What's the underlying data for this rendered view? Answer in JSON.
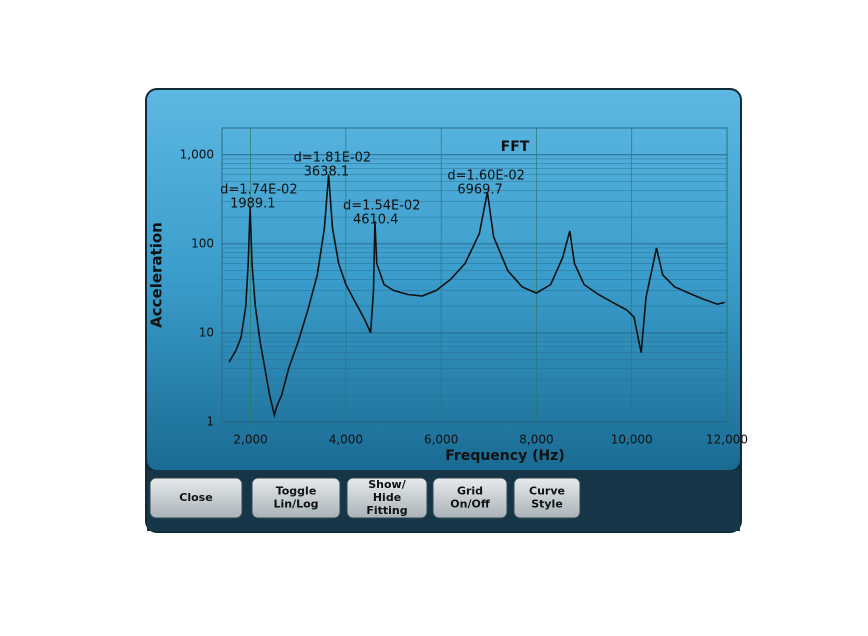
{
  "chart_data": {
    "type": "line",
    "title": "FFT",
    "x_label": "Frequency (Hz)",
    "y_label": "Acceleration",
    "log_y": true,
    "grid": true,
    "xlim": [
      1400,
      12000
    ],
    "xticks": [
      {
        "value": 2000,
        "label": "2,000"
      },
      {
        "value": 4000,
        "label": "4,000"
      },
      {
        "value": 6000,
        "label": "6,000"
      },
      {
        "value": 8000,
        "label": "8,000"
      },
      {
        "value": 10000,
        "label": "10,000"
      },
      {
        "value": 12000,
        "label": "12,000"
      }
    ],
    "ylim": [
      1,
      2000
    ],
    "yticks": [
      1,
      10,
      100,
      {
        "value": 1000,
        "label": "1,000"
      }
    ],
    "series": [
      {
        "color": "#111111",
        "x": [
          1550,
          1700,
          1800,
          1900,
          1950,
          1989,
          2030,
          2100,
          2200,
          2300,
          2400,
          2500,
          2550,
          2650,
          2800,
          3000,
          3200,
          3400,
          3550,
          3638,
          3720,
          3850,
          4000,
          4200,
          4400,
          4520,
          4580,
          4610,
          4650,
          4800,
          5000,
          5300,
          5600,
          5900,
          6200,
          6500,
          6800,
          6970,
          7100,
          7400,
          7700,
          8000,
          8300,
          8550,
          8700,
          8800,
          9000,
          9300,
          9600,
          9900,
          10050,
          10150,
          10200,
          10300,
          10450,
          10520,
          10650,
          10900,
          11200,
          11500,
          11800,
          11950
        ],
        "values": [
          4.7,
          6.5,
          9,
          20,
          60,
          260,
          60,
          20,
          8,
          4,
          2,
          1.2,
          1.5,
          2,
          4,
          8,
          18,
          45,
          150,
          600,
          150,
          60,
          35,
          22,
          14,
          10,
          30,
          180,
          60,
          35,
          30,
          27,
          26,
          30,
          40,
          60,
          130,
          380,
          120,
          50,
          33,
          28,
          35,
          70,
          140,
          60,
          35,
          27,
          22,
          18,
          15,
          8,
          6,
          25,
          60,
          90,
          45,
          33,
          28,
          24,
          21,
          22
        ]
      }
    ],
    "peaks": [
      {
        "d": "d=1.74E-02",
        "f": 1989.1
      },
      {
        "d": "d=1.81E-02",
        "f": 3638.1
      },
      {
        "d": "d=1.54E-02",
        "f": 4610.4
      },
      {
        "d": "d=1.60E-02",
        "f": 6969.7
      }
    ]
  },
  "buttons": [
    "Close",
    "Toggle\nLin/Log",
    "Show/\nHide\nFitting",
    "Grid\nOn/Off",
    "Curve\nStyle"
  ]
}
